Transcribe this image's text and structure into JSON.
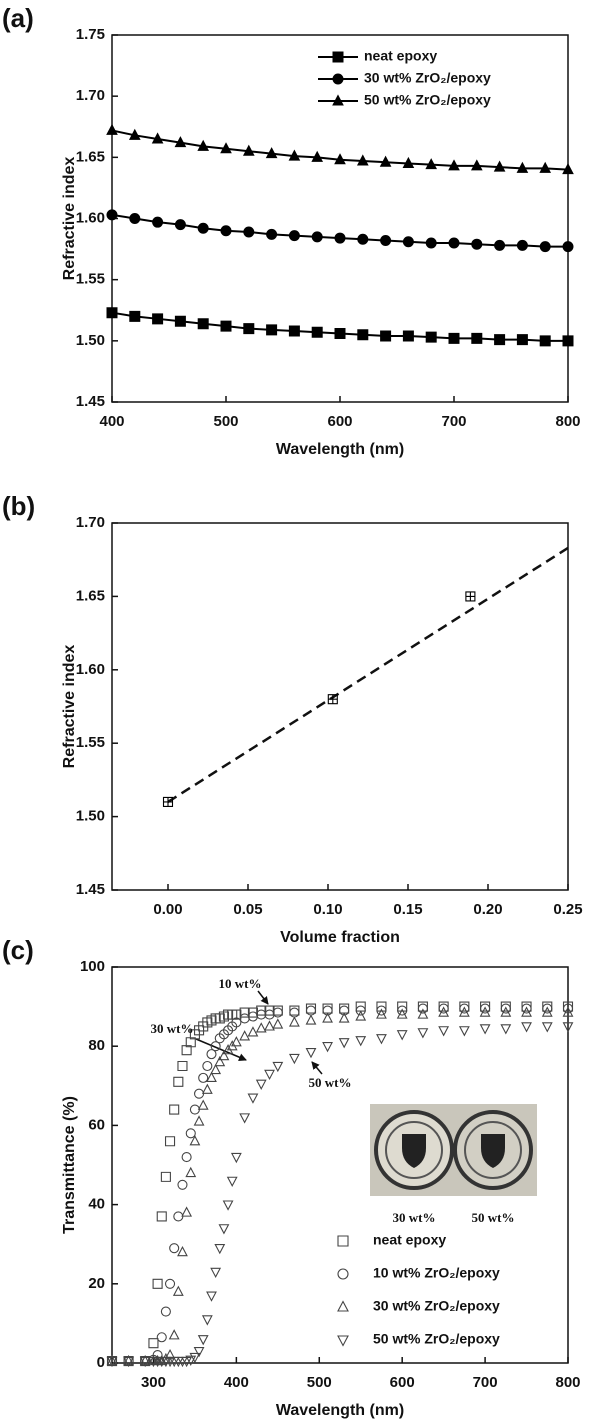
{
  "chart_data": [
    {
      "type": "line",
      "panel_label": "(a)",
      "x_label": "Wavelength (nm)",
      "y_label": "Refractive index",
      "x": [
        400,
        420,
        440,
        460,
        480,
        500,
        520,
        540,
        560,
        580,
        600,
        620,
        640,
        660,
        680,
        700,
        720,
        740,
        760,
        780,
        800
      ],
      "series": [
        {
          "name": "neat epoxy",
          "color": "#000000",
          "marker": "filled-square",
          "values": [
            1.523,
            1.52,
            1.518,
            1.516,
            1.514,
            1.512,
            1.51,
            1.509,
            1.508,
            1.507,
            1.506,
            1.505,
            1.504,
            1.504,
            1.503,
            1.502,
            1.502,
            1.501,
            1.501,
            1.5,
            1.5
          ]
        },
        {
          "name": "30 wt% ZrO₂/epoxy",
          "color": "#000000",
          "marker": "filled-circle",
          "values": [
            1.603,
            1.6,
            1.597,
            1.595,
            1.592,
            1.59,
            1.589,
            1.587,
            1.586,
            1.585,
            1.584,
            1.583,
            1.582,
            1.581,
            1.58,
            1.58,
            1.579,
            1.578,
            1.578,
            1.577,
            1.577
          ]
        },
        {
          "name": "50 wt% ZrO₂/epoxy",
          "color": "#000000",
          "marker": "filled-triangle-up",
          "values": [
            1.672,
            1.668,
            1.665,
            1.662,
            1.659,
            1.657,
            1.655,
            1.653,
            1.651,
            1.65,
            1.648,
            1.647,
            1.646,
            1.645,
            1.644,
            1.643,
            1.643,
            1.642,
            1.641,
            1.641,
            1.64
          ]
        }
      ],
      "xlim": [
        400,
        800
      ],
      "xticks": [
        400,
        500,
        600,
        700,
        800
      ],
      "ylim": [
        1.45,
        1.75
      ],
      "yticks": [
        1.45,
        {
          "value": 1.5,
          "label": "1.50"
        },
        1.55,
        {
          "value": 1.6,
          "label": "1.60"
        },
        1.65,
        {
          "value": 1.7,
          "label": "1.70"
        },
        1.75
      ],
      "legend": "upper right"
    },
    {
      "type": "scatter",
      "panel_label": "(b)",
      "x_label": "Volume fraction",
      "y_label": "Refractive index",
      "x": [
        0,
        0.103,
        0.189
      ],
      "values": [
        1.51,
        1.58,
        1.65
      ],
      "marker": "boxed-plus",
      "color": "#000000",
      "fit_line": {
        "x": [
          0,
          0.25
        ],
        "values": [
          1.51,
          1.683
        ],
        "style": "dashed"
      },
      "xlim": [
        -0.035,
        0.25
      ],
      "xticks": [
        {
          "value": 0,
          "label": "0.00"
        },
        0.05,
        {
          "value": 0.1,
          "label": "0.10"
        },
        0.15,
        {
          "value": 0.2,
          "label": "0.20"
        },
        0.25
      ],
      "ylim": [
        1.45,
        1.7
      ],
      "yticks": [
        1.45,
        {
          "value": 1.5,
          "label": "1.50"
        },
        1.55,
        {
          "value": 1.6,
          "label": "1.60"
        },
        1.65,
        {
          "value": 1.7,
          "label": "1.70"
        }
      ]
    },
    {
      "type": "scatter",
      "panel_label": "(c)",
      "x_label": "Wavelength (nm)",
      "y_label": "Transmittance (%)",
      "x": [
        250,
        270,
        290,
        300,
        305,
        310,
        315,
        320,
        325,
        330,
        335,
        340,
        345,
        350,
        355,
        360,
        365,
        370,
        375,
        380,
        385,
        390,
        395,
        400,
        410,
        420,
        430,
        440,
        450,
        470,
        490,
        510,
        530,
        550,
        575,
        600,
        625,
        650,
        675,
        700,
        725,
        750,
        775,
        800
      ],
      "series": [
        {
          "name": "neat epoxy",
          "color": "#444444",
          "marker": "open-square",
          "values": [
            0.5,
            0.5,
            0.5,
            5,
            20,
            37,
            47,
            56,
            64,
            71,
            75,
            79,
            81,
            83,
            84,
            85,
            86,
            86.5,
            87,
            87,
            87.5,
            88,
            88,
            88,
            88.5,
            88.5,
            89,
            89,
            89,
            89,
            89.5,
            89.5,
            89.5,
            90,
            90,
            90,
            90,
            90,
            90,
            90,
            90,
            90,
            90,
            90
          ]
        },
        {
          "name": "10 wt% ZrO₂/epoxy",
          "color": "#444444",
          "marker": "open-circle",
          "values": [
            0.5,
            0.5,
            0.5,
            0.8,
            2,
            6.5,
            13,
            20,
            29,
            37,
            45,
            52,
            58,
            64,
            68,
            72,
            75,
            78,
            80,
            82,
            83,
            84,
            85,
            86,
            87,
            87.5,
            88,
            88,
            88.5,
            88.5,
            89,
            89,
            89,
            89,
            89,
            89,
            89.5,
            89.5,
            89.5,
            89.5,
            89.5,
            89.5,
            89.5,
            89.5
          ]
        },
        {
          "name": "30 wt% ZrO₂/epoxy",
          "color": "#444444",
          "marker": "open-triangle-up",
          "values": [
            0.5,
            0.5,
            0.5,
            0.5,
            0.5,
            0.5,
            1,
            2,
            7,
            18,
            28,
            38,
            48,
            56,
            61,
            65,
            69,
            72,
            74,
            76,
            77.5,
            79,
            80,
            81,
            82.5,
            83.5,
            84.5,
            85,
            85.5,
            86,
            86.5,
            87,
            87,
            87.5,
            88,
            88,
            88,
            88.5,
            88.5,
            88.5,
            88.5,
            88.5,
            88.5,
            88.5
          ]
        },
        {
          "name": "50 wt% ZrO₂/epoxy",
          "color": "#444444",
          "marker": "open-triangle-down",
          "values": [
            0.5,
            0.5,
            0.5,
            0.5,
            0.5,
            0.5,
            0.5,
            0.5,
            0.5,
            0.5,
            0.5,
            0.5,
            0.8,
            1.5,
            3,
            6,
            11,
            17,
            23,
            29,
            34,
            40,
            46,
            52,
            62,
            67,
            70.5,
            73,
            75,
            77,
            78.5,
            80,
            81,
            81.5,
            82,
            83,
            83.5,
            84,
            84,
            84.5,
            84.5,
            85,
            85,
            85
          ]
        }
      ],
      "xlim": [
        250,
        800
      ],
      "xticks": [
        300,
        400,
        500,
        600,
        700,
        800
      ],
      "ylim": [
        0,
        100
      ],
      "yticks": [
        0,
        20,
        40,
        60,
        80,
        100
      ],
      "legend": "lower right",
      "annotations": [
        "10 wt%",
        "30 wt%",
        "50 wt%"
      ],
      "inset_labels": [
        "30 wt%",
        "50 wt%"
      ]
    }
  ]
}
